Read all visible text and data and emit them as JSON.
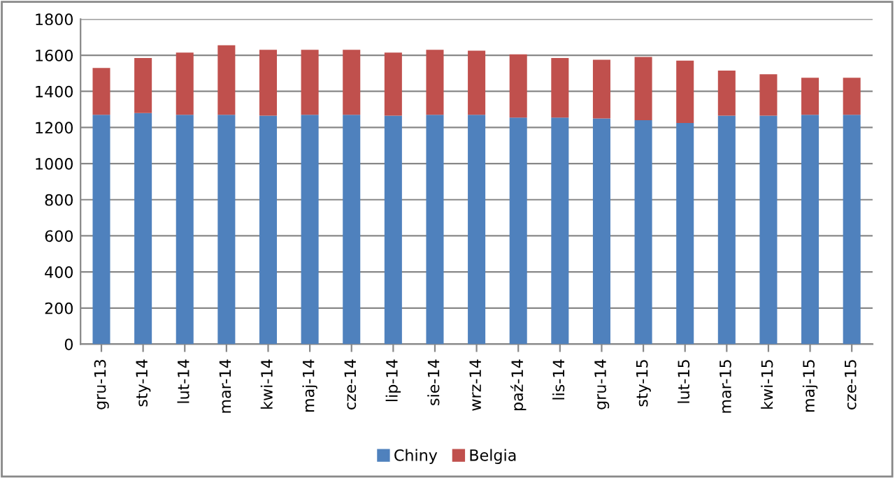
{
  "chart_data": {
    "type": "bar",
    "stacked": true,
    "categories": [
      "gru-13",
      "sty-14",
      "lut-14",
      "mar-14",
      "kwi-14",
      "maj-14",
      "cze-14",
      "lip-14",
      "sie-14",
      "wrz-14",
      "paź-14",
      "lis-14",
      "gru-14",
      "sty-15",
      "lut-15",
      "mar-15",
      "kwi-15",
      "maj-15",
      "cze-15"
    ],
    "series": [
      {
        "name": "Chiny",
        "color": "#4f81bd",
        "values": [
          1270,
          1280,
          1270,
          1270,
          1265,
          1270,
          1270,
          1265,
          1270,
          1270,
          1255,
          1255,
          1250,
          1240,
          1225,
          1265,
          1265,
          1270,
          1270
        ]
      },
      {
        "name": "Belgia",
        "color": "#c0504d",
        "values": [
          260,
          305,
          345,
          385,
          365,
          360,
          360,
          350,
          360,
          355,
          350,
          330,
          325,
          350,
          345,
          250,
          230,
          205,
          205
        ]
      }
    ],
    "ylim": [
      0,
      1800
    ],
    "yticks": [
      0,
      200,
      400,
      600,
      800,
      1000,
      1200,
      1400,
      1600,
      1800
    ],
    "grid": "y",
    "legend": "bottom"
  }
}
